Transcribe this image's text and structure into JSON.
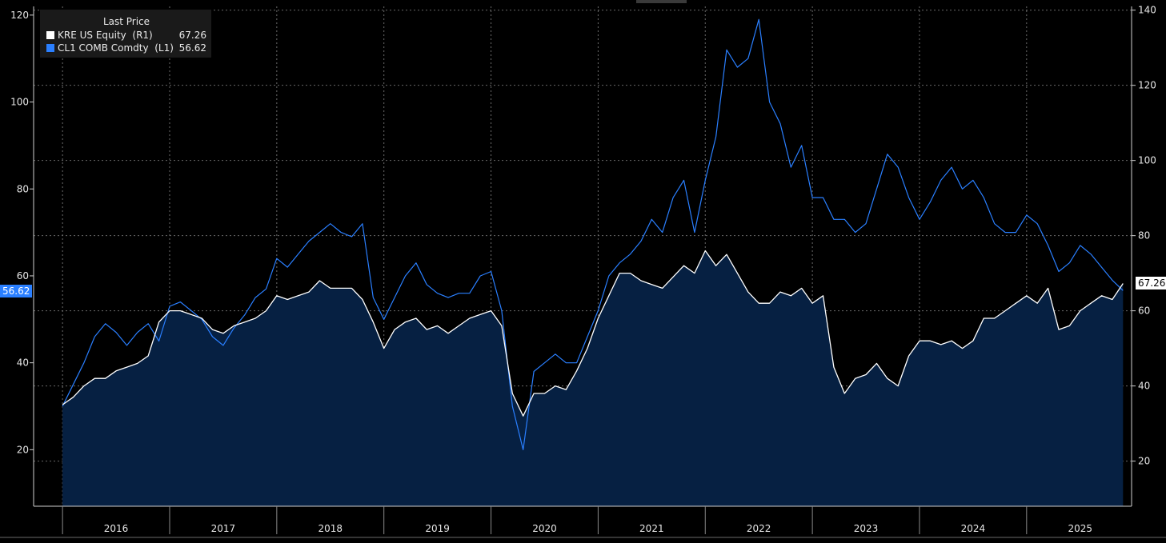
{
  "legend": {
    "title": "Last Price",
    "items": [
      {
        "name": "KRE US Equity  (R1)",
        "value": "67.26",
        "color": "#ffffff"
      },
      {
        "name": "CL1 COMB Comdty  (L1)",
        "value": "56.62",
        "color": "#2a7fff"
      }
    ]
  },
  "badges": {
    "left": "56.62",
    "right": "67.26"
  },
  "chart_data": {
    "type": "line",
    "x_range": [
      2015.73,
      2025.98
    ],
    "x_ticks": [
      "2016",
      "2017",
      "2018",
      "2019",
      "2020",
      "2021",
      "2022",
      "2023",
      "2024",
      "2025"
    ],
    "left_axis": {
      "range": [
        7,
        122
      ],
      "ticks": [
        20,
        40,
        60,
        80,
        100,
        120
      ]
    },
    "right_axis": {
      "range": [
        8,
        141
      ],
      "ticks": [
        20,
        40,
        60,
        80,
        100,
        120,
        140
      ]
    },
    "grid": true,
    "legend_position": "top-left",
    "series": [
      {
        "name": "CL1 COMB Comdty  (L1)",
        "axis": "left",
        "color": "#2a7fff",
        "style": "line",
        "points": [
          [
            2016.0,
            30
          ],
          [
            2016.1,
            35
          ],
          [
            2016.2,
            40
          ],
          [
            2016.3,
            46
          ],
          [
            2016.4,
            49
          ],
          [
            2016.5,
            47
          ],
          [
            2016.6,
            44
          ],
          [
            2016.7,
            47
          ],
          [
            2016.8,
            49
          ],
          [
            2016.9,
            45
          ],
          [
            2017.0,
            53
          ],
          [
            2017.1,
            54
          ],
          [
            2017.2,
            52
          ],
          [
            2017.3,
            50
          ],
          [
            2017.4,
            46
          ],
          [
            2017.5,
            44
          ],
          [
            2017.6,
            48
          ],
          [
            2017.7,
            51
          ],
          [
            2017.8,
            55
          ],
          [
            2017.9,
            57
          ],
          [
            2018.0,
            64
          ],
          [
            2018.1,
            62
          ],
          [
            2018.2,
            65
          ],
          [
            2018.3,
            68
          ],
          [
            2018.4,
            70
          ],
          [
            2018.5,
            72
          ],
          [
            2018.6,
            70
          ],
          [
            2018.7,
            69
          ],
          [
            2018.8,
            72
          ],
          [
            2018.9,
            55
          ],
          [
            2019.0,
            50
          ],
          [
            2019.1,
            55
          ],
          [
            2019.2,
            60
          ],
          [
            2019.3,
            63
          ],
          [
            2019.4,
            58
          ],
          [
            2019.5,
            56
          ],
          [
            2019.6,
            55
          ],
          [
            2019.7,
            56
          ],
          [
            2019.8,
            56
          ],
          [
            2019.9,
            60
          ],
          [
            2020.0,
            61
          ],
          [
            2020.1,
            52
          ],
          [
            2020.2,
            30
          ],
          [
            2020.3,
            20
          ],
          [
            2020.4,
            38
          ],
          [
            2020.5,
            40
          ],
          [
            2020.6,
            42
          ],
          [
            2020.7,
            40
          ],
          [
            2020.8,
            40
          ],
          [
            2020.9,
            46
          ],
          [
            2021.0,
            52
          ],
          [
            2021.1,
            60
          ],
          [
            2021.2,
            63
          ],
          [
            2021.3,
            65
          ],
          [
            2021.4,
            68
          ],
          [
            2021.5,
            73
          ],
          [
            2021.6,
            70
          ],
          [
            2021.7,
            78
          ],
          [
            2021.8,
            82
          ],
          [
            2021.9,
            70
          ],
          [
            2022.0,
            82
          ],
          [
            2022.1,
            92
          ],
          [
            2022.2,
            112
          ],
          [
            2022.3,
            108
          ],
          [
            2022.4,
            110
          ],
          [
            2022.5,
            119
          ],
          [
            2022.6,
            100
          ],
          [
            2022.7,
            95
          ],
          [
            2022.8,
            85
          ],
          [
            2022.9,
            90
          ],
          [
            2023.0,
            78
          ],
          [
            2023.1,
            78
          ],
          [
            2023.2,
            73
          ],
          [
            2023.3,
            73
          ],
          [
            2023.4,
            70
          ],
          [
            2023.5,
            72
          ],
          [
            2023.6,
            80
          ],
          [
            2023.7,
            88
          ],
          [
            2023.8,
            85
          ],
          [
            2023.9,
            78
          ],
          [
            2024.0,
            73
          ],
          [
            2024.1,
            77
          ],
          [
            2024.2,
            82
          ],
          [
            2024.3,
            85
          ],
          [
            2024.4,
            80
          ],
          [
            2024.5,
            82
          ],
          [
            2024.6,
            78
          ],
          [
            2024.7,
            72
          ],
          [
            2024.8,
            70
          ],
          [
            2024.9,
            70
          ],
          [
            2025.0,
            74
          ],
          [
            2025.1,
            72
          ],
          [
            2025.2,
            67
          ],
          [
            2025.3,
            61
          ],
          [
            2025.4,
            63
          ],
          [
            2025.5,
            67
          ],
          [
            2025.6,
            65
          ],
          [
            2025.7,
            62
          ],
          [
            2025.8,
            59
          ],
          [
            2025.9,
            56.62
          ]
        ]
      },
      {
        "name": "KRE US Equity  (R1)",
        "axis": "right",
        "color": "#ffffff",
        "style": "area",
        "fill": "#062042",
        "points": [
          [
            2016.0,
            35
          ],
          [
            2016.1,
            37
          ],
          [
            2016.2,
            40
          ],
          [
            2016.3,
            42
          ],
          [
            2016.4,
            42
          ],
          [
            2016.5,
            44
          ],
          [
            2016.6,
            45
          ],
          [
            2016.7,
            46
          ],
          [
            2016.8,
            48
          ],
          [
            2016.9,
            57
          ],
          [
            2017.0,
            60
          ],
          [
            2017.1,
            60
          ],
          [
            2017.2,
            59
          ],
          [
            2017.3,
            58
          ],
          [
            2017.4,
            55
          ],
          [
            2017.5,
            54
          ],
          [
            2017.6,
            56
          ],
          [
            2017.7,
            57
          ],
          [
            2017.8,
            58
          ],
          [
            2017.9,
            60
          ],
          [
            2018.0,
            64
          ],
          [
            2018.1,
            63
          ],
          [
            2018.2,
            64
          ],
          [
            2018.3,
            65
          ],
          [
            2018.4,
            68
          ],
          [
            2018.5,
            66
          ],
          [
            2018.6,
            66
          ],
          [
            2018.7,
            66
          ],
          [
            2018.8,
            63
          ],
          [
            2018.9,
            57
          ],
          [
            2019.0,
            50
          ],
          [
            2019.1,
            55
          ],
          [
            2019.2,
            57
          ],
          [
            2019.3,
            58
          ],
          [
            2019.4,
            55
          ],
          [
            2019.5,
            56
          ],
          [
            2019.6,
            54
          ],
          [
            2019.7,
            56
          ],
          [
            2019.8,
            58
          ],
          [
            2019.9,
            59
          ],
          [
            2020.0,
            60
          ],
          [
            2020.1,
            56
          ],
          [
            2020.2,
            38
          ],
          [
            2020.3,
            32
          ],
          [
            2020.4,
            38
          ],
          [
            2020.5,
            38
          ],
          [
            2020.6,
            40
          ],
          [
            2020.7,
            39
          ],
          [
            2020.8,
            44
          ],
          [
            2020.9,
            50
          ],
          [
            2021.0,
            58
          ],
          [
            2021.1,
            64
          ],
          [
            2021.2,
            70
          ],
          [
            2021.3,
            70
          ],
          [
            2021.4,
            68
          ],
          [
            2021.5,
            67
          ],
          [
            2021.6,
            66
          ],
          [
            2021.7,
            69
          ],
          [
            2021.8,
            72
          ],
          [
            2021.9,
            70
          ],
          [
            2022.0,
            76
          ],
          [
            2022.1,
            72
          ],
          [
            2022.2,
            75
          ],
          [
            2022.3,
            70
          ],
          [
            2022.4,
            65
          ],
          [
            2022.5,
            62
          ],
          [
            2022.6,
            62
          ],
          [
            2022.7,
            65
          ],
          [
            2022.8,
            64
          ],
          [
            2022.9,
            66
          ],
          [
            2023.0,
            62
          ],
          [
            2023.1,
            64
          ],
          [
            2023.2,
            45
          ],
          [
            2023.3,
            38
          ],
          [
            2023.4,
            42
          ],
          [
            2023.5,
            43
          ],
          [
            2023.6,
            46
          ],
          [
            2023.7,
            42
          ],
          [
            2023.8,
            40
          ],
          [
            2023.9,
            48
          ],
          [
            2024.0,
            52
          ],
          [
            2024.1,
            52
          ],
          [
            2024.2,
            51
          ],
          [
            2024.3,
            52
          ],
          [
            2024.4,
            50
          ],
          [
            2024.5,
            52
          ],
          [
            2024.6,
            58
          ],
          [
            2024.7,
            58
          ],
          [
            2024.8,
            60
          ],
          [
            2024.9,
            62
          ],
          [
            2025.0,
            64
          ],
          [
            2025.1,
            62
          ],
          [
            2025.2,
            66
          ],
          [
            2025.3,
            55
          ],
          [
            2025.4,
            56
          ],
          [
            2025.5,
            60
          ],
          [
            2025.6,
            62
          ],
          [
            2025.7,
            64
          ],
          [
            2025.8,
            63
          ],
          [
            2025.9,
            67.26
          ]
        ]
      }
    ]
  }
}
